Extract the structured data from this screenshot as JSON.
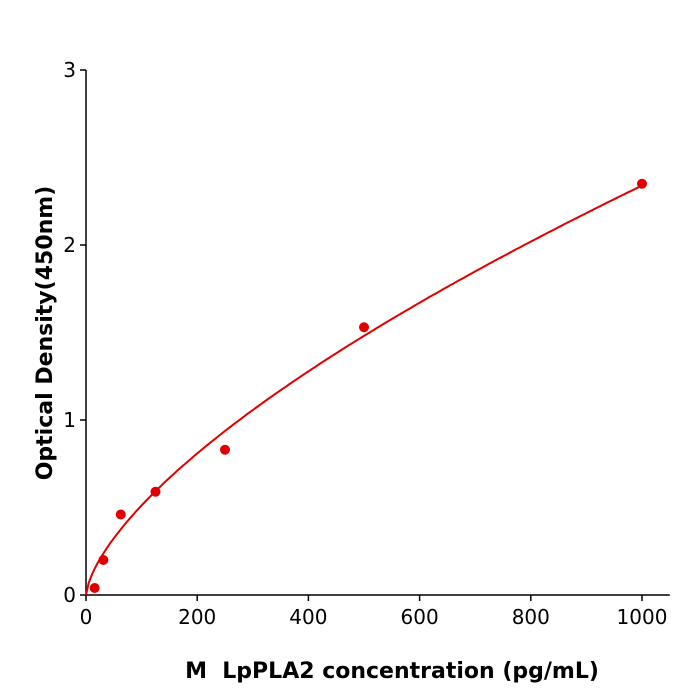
{
  "chart_data": {
    "type": "scatter",
    "title": "",
    "xlabel": "M  LpPLA2 concentration (pg/mL)",
    "ylabel": "Optical Density(450nm)",
    "xlim": [
      0,
      1050
    ],
    "ylim": [
      0,
      3
    ],
    "xticks": [
      "0",
      "200",
      "400",
      "600",
      "800",
      "1000"
    ],
    "yticks": [
      "0",
      "1",
      "2",
      "3"
    ],
    "grid": false,
    "color": "#e00000",
    "series": [
      {
        "x": [
          15.6,
          31.25,
          62.5,
          125,
          250,
          500,
          1000
        ],
        "y": [
          0.04,
          0.2,
          0.46,
          0.59,
          0.83,
          1.53,
          2.35
        ],
        "fit_line": true
      }
    ]
  }
}
